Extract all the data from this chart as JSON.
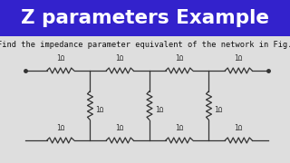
{
  "title": "Z parameters Example",
  "subtitle": "Find the impedance parameter equivalent of the network in Fig.",
  "title_bg_color": "#3322CC",
  "title_text_color": "#FFFFFF",
  "subtitle_text_color": "#111111",
  "bg_color": "#DEDEDE",
  "circuit_color": "#333333",
  "title_fontsize": 15.5,
  "subtitle_fontsize": 6.2,
  "label_1ohm": "1Ω"
}
